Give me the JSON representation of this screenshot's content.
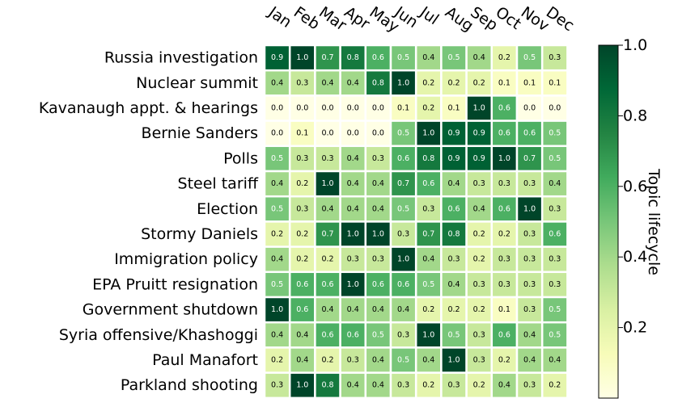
{
  "chart_data": {
    "type": "heatmap",
    "x_categories": [
      "Jan",
      "Feb",
      "Mar",
      "Apr",
      "May",
      "Jun",
      "Jul",
      "Aug",
      "Sep",
      "Oct",
      "Nov",
      "Dec"
    ],
    "y_categories": [
      "Russia investigation",
      "Nuclear summit",
      "Kavanaugh appt. & hearings",
      "Bernie Sanders",
      "Polls",
      "Steel tariff",
      "Election",
      "Stormy Daniels",
      "Immigration policy",
      "EPA Pruitt resignation",
      "Government shutdown",
      "Syria offensive/Khashoggi",
      "Paul Manafort",
      "Parkland shooting"
    ],
    "values": [
      [
        0.9,
        1.0,
        0.7,
        0.8,
        0.6,
        0.5,
        0.4,
        0.5,
        0.4,
        0.2,
        0.5,
        0.3
      ],
      [
        0.4,
        0.3,
        0.4,
        0.4,
        0.8,
        1.0,
        0.2,
        0.2,
        0.2,
        0.1,
        0.1,
        0.1
      ],
      [
        0.0,
        0.0,
        0.0,
        0.0,
        0.0,
        0.1,
        0.2,
        0.1,
        1.0,
        0.6,
        0.0,
        0.0
      ],
      [
        0.0,
        0.1,
        0.0,
        0.0,
        0.0,
        0.5,
        1.0,
        0.9,
        0.9,
        0.6,
        0.6,
        0.5
      ],
      [
        0.5,
        0.3,
        0.3,
        0.4,
        0.3,
        0.6,
        0.8,
        0.9,
        0.9,
        1.0,
        0.7,
        0.5
      ],
      [
        0.4,
        0.2,
        1.0,
        0.4,
        0.4,
        0.7,
        0.6,
        0.4,
        0.3,
        0.3,
        0.3,
        0.4
      ],
      [
        0.5,
        0.3,
        0.4,
        0.4,
        0.4,
        0.5,
        0.3,
        0.6,
        0.4,
        0.6,
        1.0,
        0.3
      ],
      [
        0.2,
        0.2,
        0.7,
        1.0,
        1.0,
        0.3,
        0.7,
        0.8,
        0.2,
        0.2,
        0.3,
        0.6
      ],
      [
        0.4,
        0.2,
        0.2,
        0.3,
        0.3,
        1.0,
        0.4,
        0.3,
        0.2,
        0.3,
        0.3,
        0.3
      ],
      [
        0.5,
        0.6,
        0.6,
        1.0,
        0.6,
        0.6,
        0.5,
        0.4,
        0.3,
        0.3,
        0.3,
        0.3
      ],
      [
        1.0,
        0.6,
        0.4,
        0.4,
        0.4,
        0.4,
        0.2,
        0.2,
        0.2,
        0.1,
        0.3,
        0.5
      ],
      [
        0.4,
        0.4,
        0.6,
        0.6,
        0.5,
        0.3,
        1.0,
        0.5,
        0.3,
        0.6,
        0.4,
        0.5
      ],
      [
        0.2,
        0.4,
        0.2,
        0.3,
        0.4,
        0.5,
        0.4,
        1.0,
        0.3,
        0.2,
        0.4,
        0.4
      ],
      [
        0.3,
        1.0,
        0.8,
        0.4,
        0.4,
        0.3,
        0.2,
        0.3,
        0.2,
        0.4,
        0.3,
        0.2
      ]
    ],
    "colormap": "YlGn",
    "vmin": 0.0,
    "vmax": 1.0,
    "colorbar_label": "Topic lifecycle",
    "colorbar_ticks": [
      "1.0",
      "0.8",
      "0.6",
      "0.4",
      "0.2"
    ],
    "colorbar_tick_values": [
      1.0,
      0.8,
      0.6,
      0.4,
      0.2
    ]
  }
}
